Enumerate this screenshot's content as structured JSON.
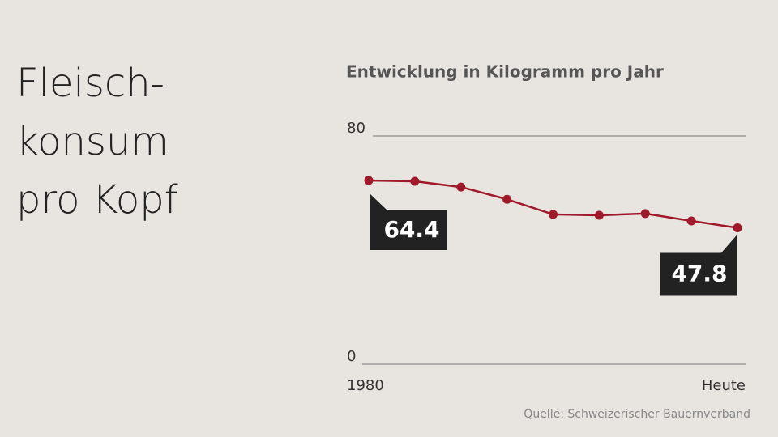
{
  "chart_data": {
    "type": "line",
    "title": [
      "Fleisch-",
      "konsum",
      "pro Kopf"
    ],
    "subtitle": "Entwicklung in Kilogramm pro Jahr",
    "source": "Quelle: Schweizerischer Bauernverband",
    "categories": [
      "1980",
      null,
      null,
      null,
      null,
      null,
      null,
      null,
      "Heute"
    ],
    "values": [
      64.4,
      64.1,
      62.1,
      57.8,
      52.5,
      52.2,
      52.8,
      50.2,
      47.8
    ],
    "color": "#a0192a",
    "ylim": [
      0,
      80
    ],
    "yticks": [
      0,
      80
    ],
    "grid": true
  }
}
